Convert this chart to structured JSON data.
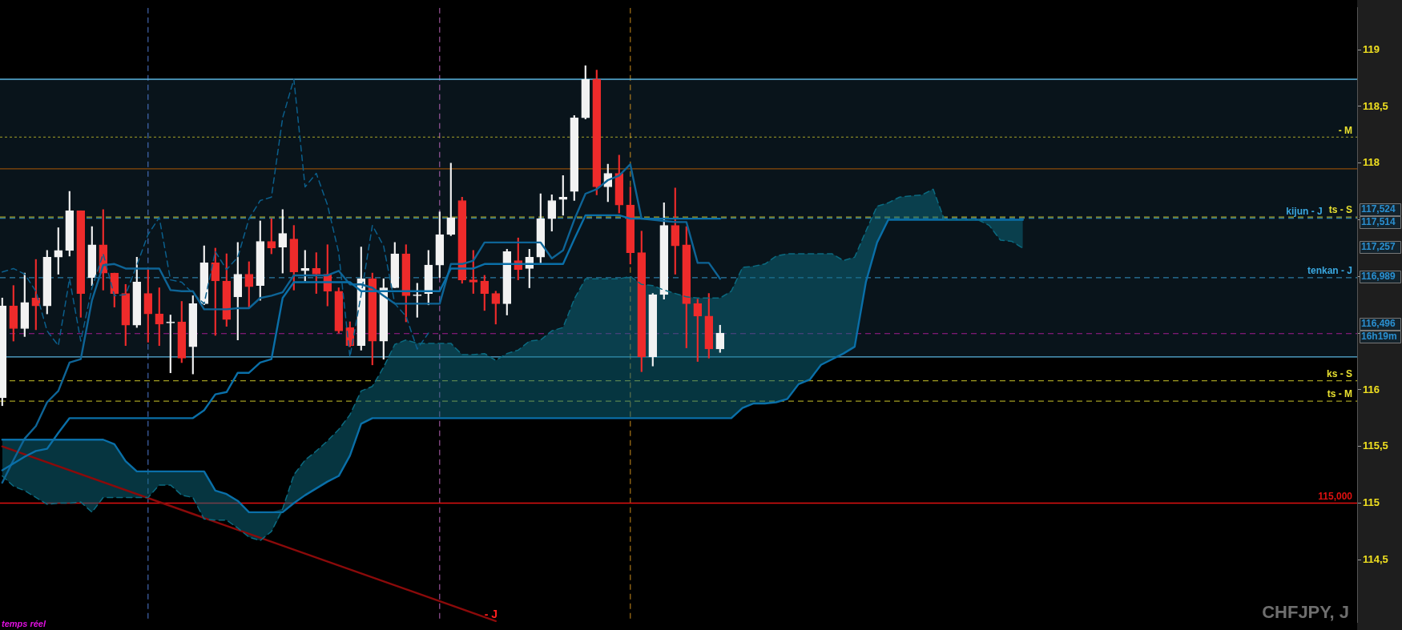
{
  "chart_data": {
    "type": "candlestick",
    "title": "CHFJPY, J",
    "categories": [
      null,
      null,
      null,
      null,
      null,
      null,
      null,
      null,
      null,
      null,
      null,
      null,
      null,
      null,
      null,
      null,
      null,
      null,
      null,
      null,
      null,
      null,
      null,
      null,
      null,
      null,
      null,
      null,
      null,
      null,
      null,
      null,
      null,
      null,
      null,
      null,
      null,
      null,
      null,
      null,
      null,
      null,
      null,
      null,
      null,
      null,
      null,
      null,
      null,
      null,
      null,
      null,
      null,
      null,
      null,
      null,
      null,
      null,
      null,
      null,
      null,
      null,
      null,
      null,
      null,
      null,
      null,
      null,
      null,
      null,
      null,
      null,
      null,
      null,
      null,
      null,
      null,
      null,
      null,
      null,
      null,
      null,
      null,
      null,
      null,
      null,
      null,
      null,
      null,
      null,
      null,
      null,
      null,
      null,
      null,
      null,
      null,
      null,
      null,
      null,
      null,
      null,
      null,
      null,
      null,
      null,
      null,
      null,
      null,
      null,
      null,
      null,
      null,
      null,
      null,
      null,
      null,
      null,
      null,
      null,
      null
    ],
    "ohlc": [
      [
        115.93,
        116.81,
        115.86,
        116.74
      ],
      [
        116.74,
        116.92,
        116.43,
        116.54
      ],
      [
        116.54,
        117.03,
        116.47,
        116.77
      ],
      [
        116.81,
        117.15,
        116.53,
        116.74
      ],
      [
        116.74,
        117.23,
        116.67,
        117.17
      ],
      [
        117.17,
        117.43,
        117.02,
        117.23
      ],
      [
        117.23,
        117.75,
        117.18,
        117.58
      ],
      [
        117.58,
        117.58,
        116.64,
        116.85
      ],
      [
        116.99,
        117.44,
        116.92,
        117.28
      ],
      [
        117.28,
        117.59,
        116.88,
        117.03
      ],
      [
        117.03,
        117.03,
        116.73,
        116.85
      ],
      [
        116.85,
        116.93,
        116.39,
        116.57
      ],
      [
        116.57,
        117.17,
        116.55,
        116.95
      ],
      [
        116.85,
        117.06,
        116.42,
        116.67
      ],
      [
        116.67,
        116.9,
        116.39,
        116.58
      ],
      [
        116.59,
        116.66,
        116.15,
        116.6
      ],
      [
        116.6,
        116.78,
        116.24,
        116.28
      ],
      [
        116.38,
        116.83,
        116.14,
        116.76
      ],
      [
        116.76,
        117.27,
        116.75,
        117.12
      ],
      [
        117.12,
        117.25,
        116.48,
        116.96
      ],
      [
        116.96,
        117.2,
        116.56,
        116.62
      ],
      [
        116.82,
        117.3,
        116.44,
        117.02
      ],
      [
        117.02,
        117.13,
        116.73,
        116.91
      ],
      [
        116.92,
        117.49,
        116.79,
        117.31
      ],
      [
        117.31,
        117.51,
        117.2,
        117.25
      ],
      [
        117.26,
        117.59,
        117.03,
        117.38
      ],
      [
        117.33,
        117.45,
        116.88,
        117.04
      ],
      [
        117.05,
        117.23,
        116.96,
        117.07
      ],
      [
        117.07,
        117.21,
        116.85,
        117.02
      ],
      [
        117.02,
        117.28,
        116.74,
        116.87
      ],
      [
        116.87,
        116.9,
        116.5,
        116.52
      ],
      [
        116.55,
        116.6,
        116.38,
        116.39
      ],
      [
        116.39,
        117.26,
        116.35,
        116.98
      ],
      [
        116.98,
        117.03,
        116.22,
        116.43
      ],
      [
        116.43,
        116.98,
        116.27,
        116.9
      ],
      [
        116.9,
        117.3,
        116.9,
        117.2
      ],
      [
        117.2,
        117.28,
        116.6,
        116.83
      ],
      [
        116.83,
        116.94,
        116.64,
        116.84
      ],
      [
        116.85,
        117.23,
        116.75,
        117.1
      ],
      [
        117.1,
        117.57,
        116.99,
        117.37
      ],
      [
        117.37,
        118.0,
        117.36,
        117.52
      ],
      [
        117.67,
        117.7,
        116.94,
        116.97
      ],
      [
        116.97,
        117.23,
        116.85,
        116.95
      ],
      [
        116.96,
        117.01,
        116.7,
        116.85
      ],
      [
        116.85,
        116.87,
        116.58,
        116.76
      ],
      [
        116.76,
        117.24,
        116.66,
        117.22
      ],
      [
        117.14,
        117.34,
        116.97,
        117.06
      ],
      [
        117.07,
        117.24,
        116.9,
        117.17
      ],
      [
        117.17,
        117.73,
        117.12,
        117.51
      ],
      [
        117.51,
        117.72,
        117.4,
        117.67
      ],
      [
        117.68,
        117.89,
        117.54,
        117.7
      ],
      [
        117.75,
        118.42,
        117.67,
        118.4
      ],
      [
        118.4,
        118.86,
        118.39,
        118.74
      ],
      [
        118.74,
        118.82,
        117.72,
        117.79
      ],
      [
        117.79,
        117.99,
        117.66,
        117.91
      ],
      [
        117.91,
        118.07,
        117.56,
        117.63
      ],
      [
        117.63,
        117.79,
        117.11,
        117.21
      ],
      [
        117.21,
        117.4,
        116.16,
        116.29
      ],
      [
        116.29,
        116.85,
        116.21,
        116.84
      ],
      [
        116.84,
        117.65,
        116.8,
        117.45
      ],
      [
        117.45,
        117.78,
        117.02,
        117.27
      ],
      [
        117.28,
        117.44,
        116.37,
        116.76
      ],
      [
        116.76,
        116.8,
        116.25,
        116.65
      ],
      [
        116.65,
        116.85,
        116.28,
        116.36
      ],
      [
        116.36,
        116.57,
        116.33,
        116.5
      ],
      null,
      null,
      null,
      null,
      null,
      null,
      null,
      null,
      null,
      null,
      null,
      null,
      null,
      null,
      null,
      null,
      null,
      null,
      null,
      null,
      null,
      null,
      null,
      null,
      null,
      null,
      null,
      null,
      null,
      null,
      null,
      null,
      null,
      null,
      null,
      null,
      null,
      null,
      null,
      null,
      null,
      null,
      null,
      null,
      null,
      null,
      null,
      null,
      null,
      null,
      null,
      null,
      null,
      null,
      null,
      null
    ],
    "colors": [
      "#f2f2f2",
      "#ee2b2b",
      "#f2f2f2",
      "#ee2b2b",
      "#f2f2f2",
      "#f2f2f2",
      "#f2f2f2",
      "#ee2b2b",
      "#f2f2f2",
      "#ee2b2b",
      "#ee2b2b",
      "#ee2b2b",
      "#f2f2f2",
      "#ee2b2b",
      "#ee2b2b",
      "#f2f2f2",
      "#ee2b2b",
      "#f2f2f2",
      "#f2f2f2",
      "#ee2b2b",
      "#ee2b2b",
      "#f2f2f2",
      "#ee2b2b",
      "#f2f2f2",
      "#ee2b2b",
      "#f2f2f2",
      "#ee2b2b",
      "#f2f2f2",
      "#ee2b2b",
      "#ee2b2b",
      "#ee2b2b",
      "#ee2b2b",
      "#f2f2f2",
      "#ee2b2b",
      "#f2f2f2",
      "#f2f2f2",
      "#ee2b2b",
      "#f2f2f2",
      "#f2f2f2",
      "#f2f2f2",
      "#f2f2f2",
      "#ee2b2b",
      "#ee2b2b",
      "#ee2b2b",
      "#ee2b2b",
      "#f2f2f2",
      "#ee2b2b",
      "#f2f2f2",
      "#f2f2f2",
      "#f2f2f2",
      "#f2f2f2",
      "#f2f2f2",
      "#f2f2f2",
      "#ee2b2b",
      "#f2f2f2",
      "#ee2b2b",
      "#ee2b2b",
      "#ee2b2b",
      "#f2f2f2",
      "#f2f2f2",
      "#ee2b2b",
      "#ee2b2b",
      "#ee2b2b",
      "#ee2b2b",
      "#f2f2f2",
      null,
      null,
      null,
      null,
      null,
      null,
      null,
      null,
      null,
      null,
      null,
      null,
      null,
      null,
      null,
      null,
      null,
      null,
      null,
      null,
      null,
      null,
      null,
      null,
      null,
      null,
      null,
      null,
      null,
      null,
      null,
      null,
      null,
      null,
      null,
      null,
      null,
      null,
      null,
      null,
      null,
      null,
      null,
      null,
      null,
      null,
      null,
      null,
      null,
      null,
      null,
      null,
      null,
      null,
      null,
      null
    ],
    "series": [
      {
        "type": "line",
        "color": "#0b6a80",
        "line_style": "dashed",
        "lower": [
          115.24,
          115.15,
          115.11,
          115.05,
          114.99,
          115.0,
          115.0,
          115.01,
          114.92,
          115.05,
          115.05,
          115.05,
          115.05,
          115.05,
          115.16,
          115.16,
          115.07,
          115.05,
          114.86,
          114.85,
          114.85,
          114.78,
          114.7,
          114.67,
          114.75,
          114.92,
          115.0,
          115.07,
          115.13,
          115.19,
          115.24,
          115.42,
          115.7,
          115.75,
          115.75,
          115.75,
          115.75,
          115.75,
          115.75,
          115.75,
          115.75,
          115.75,
          115.75,
          115.75,
          115.75,
          115.75,
          115.75,
          115.75,
          115.75,
          115.75,
          115.75,
          115.75,
          115.75,
          115.75,
          115.75,
          115.75,
          115.75,
          115.75,
          115.75,
          115.75,
          115.75,
          115.75,
          115.75,
          115.75,
          115.75,
          115.75,
          115.84,
          115.88,
          115.88,
          115.89,
          115.92,
          116.05,
          116.09,
          116.22,
          116.27,
          116.32,
          116.38,
          116.95,
          117.3,
          117.5,
          117.5,
          117.5,
          117.5,
          117.5,
          117.5,
          117.5,
          117.5,
          117.5,
          117.45,
          117.32,
          117.31,
          117.25,
          null,
          null,
          null,
          null,
          null,
          null,
          null,
          null,
          null,
          null,
          null,
          null,
          null,
          null,
          null,
          null,
          null,
          null,
          null,
          null,
          null,
          null,
          null,
          null,
          null,
          null,
          null,
          null,
          null
        ],
        "upper": [
          115.56,
          115.56,
          115.56,
          115.56,
          115.56,
          115.56,
          115.56,
          115.56,
          115.56,
          115.56,
          115.52,
          115.37,
          115.28,
          115.28,
          115.28,
          115.28,
          115.28,
          115.28,
          115.28,
          115.11,
          115.08,
          115.02,
          114.92,
          114.92,
          114.92,
          114.95,
          115.25,
          115.38,
          115.46,
          115.55,
          115.65,
          115.78,
          115.99,
          116.03,
          116.2,
          116.4,
          116.44,
          116.41,
          116.41,
          116.41,
          116.41,
          116.31,
          116.31,
          116.32,
          116.26,
          116.32,
          116.35,
          116.43,
          116.44,
          116.52,
          116.55,
          116.8,
          116.98,
          116.98,
          116.98,
          116.98,
          117.0,
          116.93,
          116.92,
          116.88,
          116.85,
          116.82,
          116.81,
          116.81,
          116.81,
          116.87,
          117.08,
          117.09,
          117.11,
          117.18,
          117.2,
          117.2,
          117.2,
          117.2,
          117.2,
          117.14,
          117.17,
          117.4,
          117.62,
          117.65,
          117.7,
          117.71,
          117.72,
          117.77,
          117.5,
          117.5,
          117.5,
          117.5,
          117.5,
          117.5,
          117.5,
          117.5,
          null,
          null,
          null,
          null,
          null,
          null,
          null,
          null,
          null,
          null,
          null,
          null,
          null,
          null,
          null,
          null,
          null,
          null,
          null,
          null,
          null,
          null,
          null,
          null,
          null,
          null,
          null,
          null,
          null
        ],
        "values": [
          115.24,
          115.15,
          115.11,
          115.05,
          114.99,
          115.0,
          115.0,
          115.01,
          114.92,
          115.05,
          115.05,
          115.05,
          115.05,
          115.05,
          115.16,
          115.16,
          115.07,
          115.05,
          114.86,
          114.85,
          114.85,
          114.78,
          114.7,
          114.67,
          114.75,
          114.95,
          115.25,
          115.38,
          115.46,
          115.55,
          115.65,
          115.78,
          115.99,
          116.03,
          116.2,
          116.4,
          116.44,
          116.41,
          116.41,
          116.41,
          116.41,
          116.31,
          116.31,
          116.32,
          116.26,
          116.32,
          116.35,
          116.43,
          116.44,
          116.52,
          116.55,
          116.8,
          116.98,
          116.98,
          116.98,
          116.98,
          117.0,
          116.93,
          116.92,
          116.88,
          116.85,
          116.82,
          116.81,
          116.81,
          116.81,
          116.87,
          117.08,
          117.09,
          117.11,
          117.18,
          117.2,
          117.2,
          117.2,
          117.2,
          117.2,
          117.14,
          117.17,
          117.4,
          117.62,
          117.65,
          117.7,
          117.71,
          117.72,
          117.77,
          117.5,
          117.5,
          117.5,
          117.5,
          117.45,
          117.32,
          117.31,
          117.25,
          null,
          null,
          null,
          null,
          null,
          null,
          null,
          null,
          null,
          null,
          null,
          null,
          null,
          null,
          null,
          null,
          null,
          null,
          null,
          null,
          null,
          null,
          null,
          null,
          null,
          null,
          null,
          null,
          null
        ]
      },
      {
        "type": "line",
        "color": "#0a6fa8",
        "values": [
          115.56,
          115.56,
          115.56,
          115.56,
          115.56,
          115.56,
          115.56,
          115.56,
          115.56,
          115.56,
          115.52,
          115.37,
          115.28,
          115.28,
          115.28,
          115.28,
          115.28,
          115.28,
          115.28,
          115.11,
          115.08,
          115.02,
          114.92,
          114.92,
          114.92,
          114.92,
          115.0,
          115.07,
          115.13,
          115.19,
          115.24,
          115.42,
          115.7,
          115.75,
          115.75,
          115.75,
          115.75,
          115.75,
          115.75,
          115.75,
          115.75,
          115.75,
          115.75,
          115.75,
          115.75,
          115.75,
          115.75,
          115.75,
          115.75,
          115.75,
          115.75,
          115.75,
          115.75,
          115.75,
          115.75,
          115.75,
          115.75,
          115.75,
          115.75,
          115.75,
          115.75,
          115.75,
          115.75,
          115.75,
          115.75,
          115.75,
          115.84,
          115.88,
          115.88,
          115.89,
          115.92,
          116.05,
          116.09,
          116.22,
          116.27,
          116.32,
          116.38,
          116.95,
          117.3,
          117.5,
          117.5,
          117.5,
          117.5,
          117.5,
          117.5,
          117.5,
          117.5,
          117.5,
          117.5,
          117.5,
          117.5,
          117.5,
          null,
          null,
          null,
          null,
          null,
          null,
          null,
          null,
          null,
          null,
          null,
          null,
          null,
          null,
          null,
          null,
          null,
          null,
          null,
          null,
          null,
          null,
          null,
          null,
          null,
          null,
          null,
          null,
          null
        ]
      },
      {
        "type": "line",
        "color": "#0a6fa8",
        "values": [
          115.29,
          115.35,
          115.41,
          115.46,
          115.48,
          115.62,
          115.75,
          115.75,
          115.75,
          115.75,
          115.75,
          115.75,
          115.75,
          115.75,
          115.75,
          115.75,
          115.75,
          115.75,
          115.82,
          115.96,
          115.98,
          116.15,
          116.15,
          116.24,
          116.27,
          116.81,
          116.95,
          116.95,
          116.95,
          116.95,
          116.95,
          116.95,
          116.87,
          116.87,
          116.87,
          116.87,
          116.87,
          116.87,
          116.87,
          116.87,
          117.07,
          117.07,
          117.07,
          117.11,
          117.11,
          117.11,
          117.11,
          117.11,
          117.11,
          117.11,
          117.11,
          117.33,
          117.54,
          117.54,
          117.54,
          117.54,
          117.51,
          117.51,
          117.51,
          117.51,
          117.51,
          117.51,
          117.51,
          117.51,
          117.51,
          null,
          null,
          null,
          null,
          null,
          null,
          null,
          null,
          null,
          null,
          null,
          null,
          null,
          null,
          null,
          null,
          null,
          null,
          null,
          null,
          null,
          null,
          null,
          null,
          null,
          null,
          null,
          null,
          null,
          null,
          null,
          null,
          null,
          null,
          null,
          null,
          null,
          null,
          null,
          null,
          null,
          null,
          null,
          null,
          null,
          null,
          null,
          null,
          null,
          null,
          null,
          null,
          null,
          null,
          null,
          null
        ]
      },
      {
        "type": "line",
        "color": "#0e6496",
        "values": [
          115.18,
          115.38,
          115.57,
          115.68,
          115.89,
          115.99,
          116.24,
          116.27,
          116.79,
          117.1,
          117.11,
          117.07,
          117.07,
          117.07,
          117.07,
          116.88,
          116.87,
          116.87,
          116.71,
          116.71,
          116.71,
          116.72,
          116.72,
          116.81,
          116.83,
          116.86,
          117.01,
          117.01,
          117.01,
          117.01,
          117.05,
          116.93,
          116.93,
          116.9,
          116.83,
          116.76,
          116.76,
          116.76,
          116.76,
          116.76,
          117.11,
          117.11,
          117.14,
          117.3,
          117.3,
          117.3,
          117.3,
          117.3,
          117.3,
          117.16,
          117.23,
          117.5,
          117.73,
          117.77,
          117.85,
          117.89,
          117.99,
          117.51,
          117.5,
          117.49,
          117.48,
          117.48,
          117.12,
          117.12,
          116.98,
          null,
          null,
          null,
          null,
          null,
          null,
          null,
          null,
          null,
          null,
          null,
          null,
          null,
          null,
          null,
          null,
          null,
          null,
          null,
          null,
          null,
          null,
          null,
          null,
          null,
          null,
          null,
          null,
          null,
          null,
          null,
          null,
          null,
          null,
          null,
          null,
          null,
          null,
          null,
          null,
          null,
          null,
          null,
          null,
          null,
          null,
          null,
          null,
          null,
          null,
          null,
          null,
          null,
          null,
          null,
          null
        ]
      },
      {
        "type": "line",
        "color": "#0b5f8c",
        "line_style": "dashed",
        "values": [
          117.04,
          117.07,
          117.02,
          116.87,
          116.52,
          116.39,
          116.98,
          116.43,
          116.9,
          117.2,
          116.83,
          116.84,
          117.1,
          117.37,
          117.52,
          116.97,
          116.95,
          116.85,
          116.76,
          117.22,
          117.06,
          117.17,
          117.51,
          117.67,
          117.7,
          118.4,
          118.74,
          117.79,
          117.91,
          117.63,
          117.21,
          116.29,
          116.84,
          117.45,
          117.27,
          116.76,
          116.65,
          116.36,
          116.5,
          null,
          null,
          null,
          null,
          null,
          null,
          null,
          null,
          null,
          null,
          null,
          null,
          null,
          null,
          null,
          null,
          null,
          null,
          null,
          null,
          null,
          null,
          null,
          null,
          null,
          null,
          null,
          null,
          null,
          null,
          null,
          null,
          null,
          null,
          null,
          null,
          null,
          null,
          null,
          null,
          null,
          null,
          null,
          null,
          null,
          null,
          null,
          null,
          null,
          null,
          null,
          null,
          null,
          null,
          null,
          null,
          null,
          null,
          null,
          null,
          null,
          null,
          null,
          null,
          null,
          null,
          null,
          null,
          null,
          null,
          null,
          null,
          null,
          null,
          null,
          null,
          null,
          null,
          null,
          null,
          null,
          null
        ]
      },
      {
        "type": "line",
        "color": "#8b0a0a",
        "values": [
          115.5,
          null,
          null,
          null,
          null,
          null,
          null,
          null,
          null,
          null,
          null,
          null,
          null,
          null,
          null,
          null,
          null,
          null,
          null,
          null,
          null,
          null,
          null,
          null,
          null,
          null,
          null,
          null,
          null,
          null,
          null,
          null,
          null,
          null,
          null,
          null,
          null,
          null,
          null,
          null,
          null,
          null,
          null,
          null,
          113.96,
          null,
          null,
          null,
          null,
          null,
          null,
          null,
          null,
          null,
          null,
          null,
          null,
          null,
          null,
          null,
          null,
          null,
          null,
          null,
          null,
          null,
          null,
          null,
          null,
          null,
          null,
          null,
          null,
          null,
          null,
          null,
          null,
          null,
          null,
          null,
          null,
          null,
          null,
          null,
          null,
          null,
          null,
          null,
          null,
          null,
          null,
          null,
          null,
          null,
          null,
          null,
          null,
          null,
          null,
          null,
          null,
          null,
          null,
          null,
          null,
          null,
          null,
          null,
          null,
          null,
          null,
          null,
          null,
          null,
          null,
          null,
          null,
          null,
          null,
          null,
          null
        ]
      }
    ],
    "ylim": [
      113.95,
      119.37
    ],
    "yticks": [
      {
        "value": 114.5,
        "label": "114,5"
      },
      115,
      {
        "value": 115.5,
        "label": "115,5"
      },
      116,
      {
        "value": 116.5,
        "label": null
      },
      {
        "value": 117,
        "label": null
      },
      {
        "value": 117.5,
        "label": null
      },
      118,
      {
        "value": 118.5,
        "label": "118,5"
      },
      119
    ],
    "bands": [
      {
        "axis": "y",
        "from": 116.29,
        "to": 118.74,
        "color": "#09141b"
      }
    ],
    "ref_lines": [
      {
        "axis": "y",
        "value": 118.74,
        "color": "#5ab4e0",
        "line_style": "solid"
      },
      {
        "axis": "y",
        "value": 118.23,
        "label": "- M",
        "color": "#e8e030",
        "line_style": "dotted"
      },
      {
        "axis": "y",
        "value": 117.95,
        "color": "#8b4a0a",
        "line_style": "solid"
      },
      {
        "axis": "y",
        "value": 117.524,
        "label": "ts - S",
        "color": "#e8e030",
        "line_style": "dashed"
      },
      {
        "axis": "y",
        "value": 117.514,
        "label": "kijun - J",
        "color": "#3aa8e0",
        "line_style": "dashed"
      },
      {
        "axis": "y",
        "value": 116.989,
        "label": "tenkan - J",
        "color": "#3aa8e0",
        "line_style": "dashed"
      },
      {
        "axis": "y",
        "value": 116.496,
        "color": "#e020c0",
        "line_style": "dashed"
      },
      {
        "axis": "y",
        "value": 116.29,
        "color": "#5ab4e0",
        "line_style": "solid"
      },
      {
        "axis": "y",
        "value": 116.08,
        "label": "ks - S",
        "color": "#e8e030",
        "line_style": "dashed"
      },
      {
        "axis": "y",
        "value": 115.9,
        "label": "ts - M",
        "color": "#e8e030",
        "line_style": "dashed"
      },
      {
        "axis": "y",
        "value": 115,
        "label": "115,000",
        "color": "#e01010",
        "line_style": "solid"
      }
    ],
    "annotations": [
      "117,524",
      "117,514",
      "117,257",
      "116,989",
      "116,496",
      "16h19m",
      "- J",
      "temps réel"
    ],
    "tick_labels": "y",
    "legend": false,
    "grid": false
  }
}
